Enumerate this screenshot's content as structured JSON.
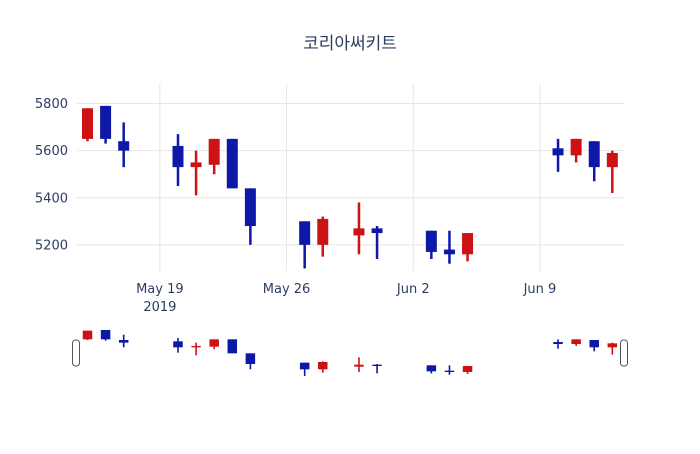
{
  "chart_data": {
    "type": "candlestick",
    "title": "코리아써키트",
    "xlabel": "",
    "ylabel": "",
    "legend": null,
    "grid": true,
    "background_color": "#ffffff",
    "grid_color": "#e6e6e6",
    "text_color": "#2a3f5f",
    "increasing_color": "#cc1212",
    "decreasing_color": "#0e18a8",
    "ylim": [
      5089,
      5883
    ],
    "xlim_days": [
      -0.58,
      29.7
    ],
    "y_ticks": [
      5200,
      5400,
      5600,
      5800
    ],
    "x_ticks": [
      {
        "label": "May 19",
        "sub": "2019",
        "day": 4
      },
      {
        "label": "May 26",
        "sub": "",
        "day": 11
      },
      {
        "label": "Jun 2",
        "sub": "",
        "day": 18
      },
      {
        "label": "Jun 9",
        "sub": "",
        "day": 25
      }
    ],
    "series": [
      {
        "date": "2019-05-15",
        "day": 0,
        "open": 5650,
        "high": 5780,
        "low": 5640,
        "close": 5780
      },
      {
        "date": "2019-05-16",
        "day": 1,
        "open": 5790,
        "high": 5790,
        "low": 5630,
        "close": 5650
      },
      {
        "date": "2019-05-17",
        "day": 2,
        "open": 5640,
        "high": 5720,
        "low": 5530,
        "close": 5600
      },
      {
        "date": "2019-05-20",
        "day": 5,
        "open": 5620,
        "high": 5670,
        "low": 5450,
        "close": 5530
      },
      {
        "date": "2019-05-21",
        "day": 6,
        "open": 5530,
        "high": 5600,
        "low": 5410,
        "close": 5550
      },
      {
        "date": "2019-05-22",
        "day": 7,
        "open": 5540,
        "high": 5650,
        "low": 5500,
        "close": 5650
      },
      {
        "date": "2019-05-23",
        "day": 8,
        "open": 5650,
        "high": 5650,
        "low": 5440,
        "close": 5440
      },
      {
        "date": "2019-05-24",
        "day": 9,
        "open": 5440,
        "high": 5440,
        "low": 5200,
        "close": 5280
      },
      {
        "date": "2019-05-27",
        "day": 12,
        "open": 5300,
        "high": 5300,
        "low": 5100,
        "close": 5200
      },
      {
        "date": "2019-05-28",
        "day": 13,
        "open": 5200,
        "high": 5320,
        "low": 5150,
        "close": 5310
      },
      {
        "date": "2019-05-30",
        "day": 15,
        "open": 5240,
        "high": 5380,
        "low": 5160,
        "close": 5270
      },
      {
        "date": "2019-05-31",
        "day": 16,
        "open": 5270,
        "high": 5280,
        "low": 5140,
        "close": 5250
      },
      {
        "date": "2019-06-03",
        "day": 19,
        "open": 5260,
        "high": 5260,
        "low": 5140,
        "close": 5170
      },
      {
        "date": "2019-06-04",
        "day": 20,
        "open": 5180,
        "high": 5260,
        "low": 5120,
        "close": 5160
      },
      {
        "date": "2019-06-05",
        "day": 21,
        "open": 5160,
        "high": 5250,
        "low": 5130,
        "close": 5250
      },
      {
        "date": "2019-06-10",
        "day": 26,
        "open": 5610,
        "high": 5650,
        "low": 5510,
        "close": 5580
      },
      {
        "date": "2019-06-11",
        "day": 27,
        "open": 5580,
        "high": 5650,
        "low": 5550,
        "close": 5650
      },
      {
        "date": "2019-06-12",
        "day": 28,
        "open": 5640,
        "high": 5640,
        "low": 5470,
        "close": 5530
      },
      {
        "date": "2019-06-13",
        "day": 29,
        "open": 5530,
        "high": 5600,
        "low": 5420,
        "close": 5590
      }
    ],
    "rangeslider": {
      "visible": true,
      "selection": "full-range"
    }
  }
}
